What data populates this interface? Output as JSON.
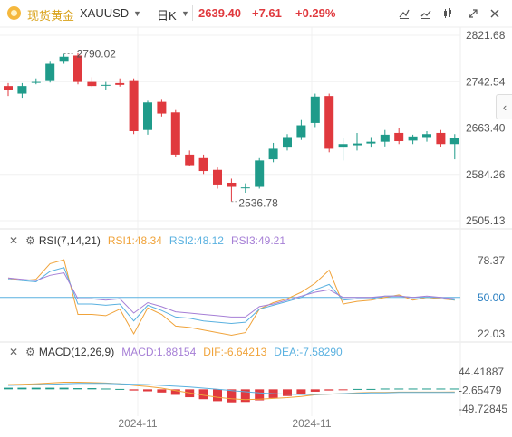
{
  "header": {
    "symbol_name": "现货黄金",
    "symbol_code": "XAUUSD",
    "timeframe": "日K",
    "last_price": "2639.40",
    "change": "+7.61",
    "change_pct": "+0.29%",
    "icons": [
      "line-tool-icon",
      "chart-type-icon",
      "compare-icon",
      "fullscreen-icon",
      "close-icon"
    ]
  },
  "colors": {
    "up": "#1f9b8a",
    "down": "#e0393e",
    "accent": "#d9a21b",
    "rsi1": "#f0a33a",
    "rsi2": "#5ab1e0",
    "rsi3": "#a67fd6",
    "dif": "#f0a33a",
    "dea": "#5ab1e0"
  },
  "chart_data": [
    {
      "type": "candlestick",
      "y_ticks": [
        "2821.68",
        "2742.54",
        "2663.40",
        "2584.26",
        "2505.13"
      ],
      "ylim": [
        2505.13,
        2821.68
      ],
      "annotations": {
        "high": "2790.02",
        "low": "2536.78"
      },
      "x_ticks": [
        "2024-11",
        "2024-11"
      ],
      "candles": [
        {
          "o": 2735,
          "h": 2740,
          "l": 2718,
          "c": 2728
        },
        {
          "o": 2722,
          "h": 2740,
          "l": 2715,
          "c": 2735
        },
        {
          "o": 2742,
          "h": 2748,
          "l": 2738,
          "c": 2742
        },
        {
          "o": 2745,
          "h": 2778,
          "l": 2741,
          "c": 2773
        },
        {
          "o": 2778,
          "h": 2790,
          "l": 2773,
          "c": 2785
        },
        {
          "o": 2787,
          "h": 2791,
          "l": 2738,
          "c": 2742
        },
        {
          "o": 2742,
          "h": 2750,
          "l": 2733,
          "c": 2735
        },
        {
          "o": 2737,
          "h": 2742,
          "l": 2728,
          "c": 2737
        },
        {
          "o": 2740,
          "h": 2748,
          "l": 2734,
          "c": 2737
        },
        {
          "o": 2745,
          "h": 2748,
          "l": 2653,
          "c": 2658
        },
        {
          "o": 2660,
          "h": 2710,
          "l": 2652,
          "c": 2707
        },
        {
          "o": 2708,
          "h": 2713,
          "l": 2683,
          "c": 2688
        },
        {
          "o": 2690,
          "h": 2694,
          "l": 2614,
          "c": 2618
        },
        {
          "o": 2618,
          "h": 2625,
          "l": 2598,
          "c": 2600
        },
        {
          "o": 2612,
          "h": 2618,
          "l": 2585,
          "c": 2590
        },
        {
          "o": 2592,
          "h": 2596,
          "l": 2560,
          "c": 2567
        },
        {
          "o": 2570,
          "h": 2577,
          "l": 2538,
          "c": 2563
        },
        {
          "o": 2562,
          "h": 2569,
          "l": 2553,
          "c": 2562
        },
        {
          "o": 2563,
          "h": 2612,
          "l": 2560,
          "c": 2608
        },
        {
          "o": 2610,
          "h": 2638,
          "l": 2605,
          "c": 2628
        },
        {
          "o": 2630,
          "h": 2653,
          "l": 2625,
          "c": 2648
        },
        {
          "o": 2648,
          "h": 2677,
          "l": 2643,
          "c": 2668
        },
        {
          "o": 2672,
          "h": 2722,
          "l": 2665,
          "c": 2717
        },
        {
          "o": 2718,
          "h": 2722,
          "l": 2622,
          "c": 2628
        },
        {
          "o": 2630,
          "h": 2646,
          "l": 2608,
          "c": 2636
        },
        {
          "o": 2634,
          "h": 2655,
          "l": 2625,
          "c": 2637
        },
        {
          "o": 2637,
          "h": 2648,
          "l": 2630,
          "c": 2640
        },
        {
          "o": 2640,
          "h": 2660,
          "l": 2632,
          "c": 2652
        },
        {
          "o": 2655,
          "h": 2664,
          "l": 2636,
          "c": 2641
        },
        {
          "o": 2642,
          "h": 2652,
          "l": 2636,
          "c": 2649
        },
        {
          "o": 2648,
          "h": 2658,
          "l": 2640,
          "c": 2653
        },
        {
          "o": 2655,
          "h": 2660,
          "l": 2631,
          "c": 2636
        },
        {
          "o": 2636,
          "h": 2653,
          "l": 2610,
          "c": 2647
        }
      ]
    },
    {
      "type": "line",
      "title": "RSI(7,14,21)",
      "legend": [
        "RSI1:48.34",
        "RSI2:48.12",
        "RSI3:49.21"
      ],
      "y_ticks": [
        "78.37",
        "50.00",
        "22.03"
      ],
      "ylim": [
        22.03,
        78.37
      ],
      "reference": 50,
      "series": [
        {
          "name": "RSI1",
          "values": [
            65,
            63,
            64,
            76,
            79,
            37,
            37,
            36,
            41,
            22,
            42,
            37,
            28,
            27,
            25,
            23,
            21,
            23,
            41,
            46,
            49,
            54,
            61,
            71,
            45,
            47,
            48,
            50,
            52,
            48,
            50,
            49,
            48
          ]
        },
        {
          "name": "RSI2",
          "values": [
            64,
            63,
            62,
            70,
            73,
            45,
            45,
            44,
            45,
            32,
            44,
            40,
            35,
            34,
            32,
            31,
            30,
            31,
            41,
            44,
            47,
            50,
            56,
            60,
            48,
            49,
            49,
            51,
            51,
            50,
            50,
            50,
            48
          ]
        },
        {
          "name": "RSI3",
          "values": [
            65,
            64,
            63,
            67,
            69,
            49,
            49,
            48,
            49,
            38,
            46,
            43,
            39,
            38,
            37,
            36,
            35,
            35,
            43,
            45,
            48,
            51,
            54,
            56,
            50,
            50,
            50,
            51,
            51,
            50,
            51,
            50,
            49
          ]
        }
      ]
    },
    {
      "type": "bar",
      "title": "MACD(12,26,9)",
      "legend": [
        "MACD:1.88154",
        "DIF:-6.64213",
        "DEA:-7.58290"
      ],
      "y_ticks": [
        "44.41887",
        "-2.65479",
        "-49.72845"
      ],
      "ylim": [
        -49.72845,
        44.41887
      ],
      "macd": [
        4,
        4,
        4,
        4,
        4,
        3,
        3,
        2,
        1,
        -3,
        -5,
        -8,
        -14,
        -20,
        -25,
        -30,
        -33,
        -32,
        -28,
        -22,
        -17,
        -12,
        -6,
        -3,
        -1,
        1,
        1,
        2,
        2,
        2,
        2,
        2,
        2
      ],
      "series": [
        {
          "name": "DIF",
          "values": [
            12,
            13,
            14,
            16,
            18,
            18,
            17,
            16,
            14,
            10,
            7,
            3,
            -3,
            -9,
            -15,
            -20,
            -24,
            -26,
            -25,
            -23,
            -21,
            -18,
            -14,
            -12,
            -11,
            -9,
            -8,
            -8,
            -7,
            -7,
            -7,
            -7,
            -6.6
          ]
        },
        {
          "name": "DEA",
          "values": [
            10,
            11,
            12,
            13,
            14,
            15,
            15,
            15,
            14,
            13,
            12,
            10,
            8,
            6,
            3,
            0,
            -3,
            -6,
            -9,
            -11,
            -12,
            -13,
            -13,
            -12,
            -11,
            -10,
            -9,
            -9,
            -8,
            -8,
            -8,
            -8,
            -7.6
          ]
        }
      ]
    }
  ]
}
